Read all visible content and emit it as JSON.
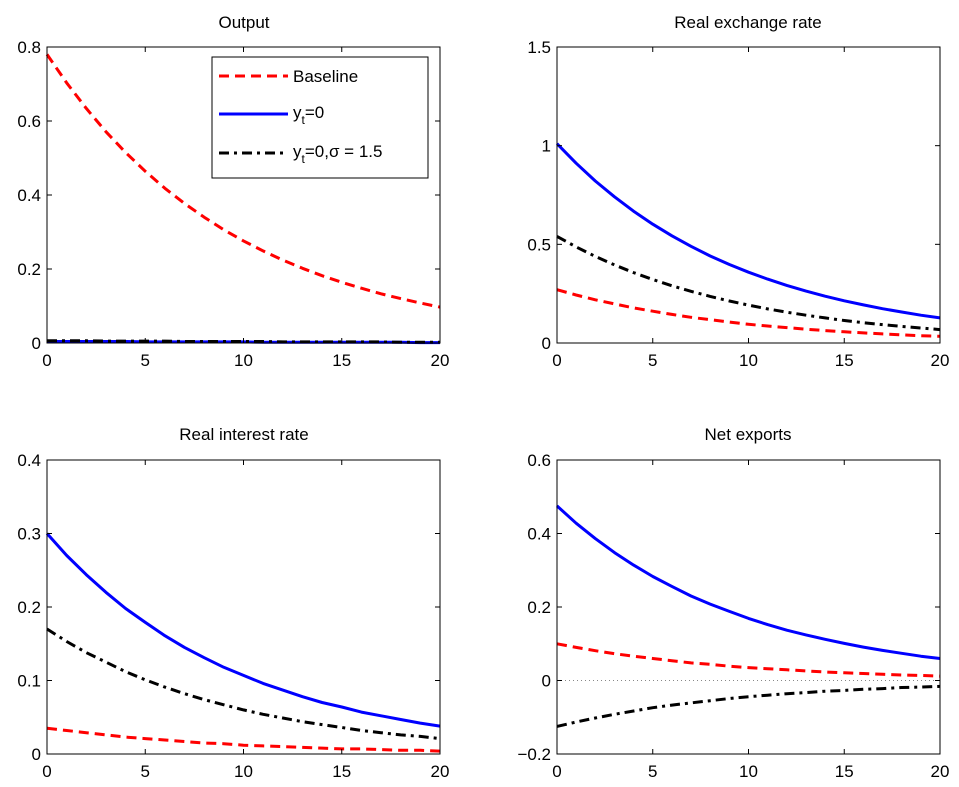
{
  "chart_data": [
    {
      "type": "line",
      "title": "Output",
      "xlabel": "",
      "ylabel": "",
      "xlim": [
        0,
        20
      ],
      "ylim": [
        0,
        0.8
      ],
      "xticks": [
        "0",
        "5",
        "10",
        "15",
        "20"
      ],
      "yticks": [
        "0",
        "0.2",
        "0.4",
        "0.6",
        "0.8"
      ],
      "grid": false,
      "legend": "top-right",
      "x": [
        0,
        1,
        2,
        3,
        4,
        5,
        6,
        7,
        8,
        9,
        10,
        11,
        12,
        13,
        14,
        15,
        16,
        17,
        18,
        19,
        20
      ],
      "series": [
        {
          "name": "Baseline",
          "color": "#ff0000",
          "style": "dashed",
          "values": [
            0.78,
            0.703,
            0.634,
            0.571,
            0.515,
            0.464,
            0.418,
            0.377,
            0.34,
            0.306,
            0.276,
            0.249,
            0.224,
            0.202,
            0.182,
            0.164,
            0.148,
            0.133,
            0.12,
            0.108,
            0.097
          ]
        },
        {
          "name": "y_t=0",
          "color": "#0000ff",
          "style": "solid",
          "values": [
            0.004,
            0.004,
            0.004,
            0.004,
            0.004,
            0.003,
            0.003,
            0.003,
            0.003,
            0.003,
            0.003,
            0.002,
            0.002,
            0.002,
            0.002,
            0.002,
            0.002,
            0.002,
            0.002,
            0.001,
            0.001
          ]
        },
        {
          "name": "y_t=0,σ = 1.5",
          "color": "#000000",
          "style": "dashdot",
          "values": [
            0.006,
            0.006,
            0.006,
            0.005,
            0.005,
            0.005,
            0.005,
            0.004,
            0.004,
            0.004,
            0.004,
            0.004,
            0.003,
            0.003,
            0.003,
            0.003,
            0.003,
            0.003,
            0.002,
            0.002,
            0.002
          ]
        }
      ],
      "legend_entries": {
        "baseline": "Baseline",
        "yt0_base": "y",
        "yt0_sub": "t",
        "yt0_rest": "=0",
        "sigma_base": "y",
        "sigma_sub": "t",
        "sigma_rest": "=0,σ = 1.5"
      }
    },
    {
      "type": "line",
      "title": "Real exchange rate",
      "xlabel": "",
      "ylabel": "",
      "xlim": [
        0,
        20
      ],
      "ylim": [
        0,
        1.5
      ],
      "xticks": [
        "0",
        "5",
        "10",
        "15",
        "20"
      ],
      "yticks": [
        "0",
        "0.5",
        "1",
        "1.5"
      ],
      "grid": false,
      "x": [
        0,
        1,
        2,
        3,
        4,
        5,
        6,
        7,
        8,
        9,
        10,
        11,
        12,
        13,
        14,
        15,
        16,
        17,
        18,
        19,
        20
      ],
      "series": [
        {
          "name": "Baseline",
          "color": "#ff0000",
          "style": "dashed",
          "values": [
            0.27,
            0.243,
            0.219,
            0.198,
            0.178,
            0.161,
            0.145,
            0.13,
            0.118,
            0.106,
            0.095,
            0.086,
            0.078,
            0.07,
            0.063,
            0.057,
            0.051,
            0.046,
            0.041,
            0.037,
            0.034
          ]
        },
        {
          "name": "y_t=0",
          "color": "#0000ff",
          "style": "solid",
          "values": [
            1.01,
            0.911,
            0.821,
            0.741,
            0.668,
            0.602,
            0.543,
            0.49,
            0.441,
            0.398,
            0.359,
            0.324,
            0.292,
            0.263,
            0.237,
            0.214,
            0.193,
            0.174,
            0.157,
            0.141,
            0.127
          ]
        },
        {
          "name": "y_t=0,σ = 1.5",
          "color": "#000000",
          "style": "dashdot",
          "values": [
            0.54,
            0.487,
            0.439,
            0.396,
            0.357,
            0.322,
            0.29,
            0.262,
            0.236,
            0.213,
            0.192,
            0.173,
            0.156,
            0.141,
            0.127,
            0.114,
            0.103,
            0.093,
            0.084,
            0.076,
            0.068
          ]
        }
      ]
    },
    {
      "type": "line",
      "title": "Real interest rate",
      "xlabel": "",
      "ylabel": "",
      "xlim": [
        0,
        20
      ],
      "ylim": [
        0,
        0.4
      ],
      "xticks": [
        "0",
        "5",
        "10",
        "15",
        "20"
      ],
      "yticks": [
        "0",
        "0.1",
        "0.2",
        "0.3",
        "0.4"
      ],
      "grid": false,
      "x": [
        0,
        1,
        2,
        3,
        4,
        5,
        6,
        7,
        8,
        9,
        10,
        11,
        12,
        13,
        14,
        15,
        16,
        17,
        18,
        19,
        20
      ],
      "series": [
        {
          "name": "Baseline",
          "color": "#ff0000",
          "style": "dashed",
          "values": [
            0.035,
            0.032,
            0.029,
            0.026,
            0.023,
            0.021,
            0.019,
            0.017,
            0.015,
            0.014,
            0.012,
            0.011,
            0.01,
            0.009,
            0.008,
            0.007,
            0.007,
            0.006,
            0.005,
            0.005,
            0.004
          ]
        },
        {
          "name": "y_t=0",
          "color": "#0000ff",
          "style": "solid",
          "values": [
            0.3,
            0.27,
            0.244,
            0.22,
            0.198,
            0.179,
            0.161,
            0.145,
            0.131,
            0.118,
            0.107,
            0.096,
            0.087,
            0.078,
            0.07,
            0.064,
            0.057,
            0.052,
            0.047,
            0.042,
            0.038
          ]
        },
        {
          "name": "y_t=0,σ = 1.5",
          "color": "#000000",
          "style": "dashdot",
          "values": [
            0.17,
            0.153,
            0.138,
            0.125,
            0.112,
            0.101,
            0.091,
            0.082,
            0.074,
            0.067,
            0.06,
            0.054,
            0.049,
            0.044,
            0.04,
            0.036,
            0.032,
            0.029,
            0.026,
            0.024,
            0.021
          ]
        }
      ]
    },
    {
      "type": "line",
      "title": "Net exports",
      "xlabel": "",
      "ylabel": "",
      "xlim": [
        0,
        20
      ],
      "ylim": [
        -0.2,
        0.6
      ],
      "xticks": [
        "0",
        "5",
        "10",
        "15",
        "20"
      ],
      "yticks": [
        "−0.2",
        "0",
        "0.2",
        "0.4",
        "0.6"
      ],
      "grid": false,
      "zero_line": true,
      "x": [
        0,
        1,
        2,
        3,
        4,
        5,
        6,
        7,
        8,
        9,
        10,
        11,
        12,
        13,
        14,
        15,
        16,
        17,
        18,
        19,
        20
      ],
      "series": [
        {
          "name": "Baseline",
          "color": "#ff0000",
          "style": "dashed",
          "values": [
            0.1,
            0.09,
            0.081,
            0.073,
            0.066,
            0.06,
            0.054,
            0.048,
            0.044,
            0.039,
            0.035,
            0.032,
            0.029,
            0.026,
            0.023,
            0.021,
            0.019,
            0.017,
            0.015,
            0.014,
            0.012
          ]
        },
        {
          "name": "y_t=0",
          "color": "#0000ff",
          "style": "solid",
          "values": [
            0.475,
            0.428,
            0.386,
            0.348,
            0.314,
            0.283,
            0.256,
            0.23,
            0.208,
            0.188,
            0.169,
            0.152,
            0.137,
            0.124,
            0.112,
            0.101,
            0.091,
            0.082,
            0.074,
            0.066,
            0.06
          ]
        },
        {
          "name": "y_t=0,σ = 1.5",
          "color": "#000000",
          "style": "dashdot",
          "values": [
            -0.125,
            -0.113,
            -0.102,
            -0.092,
            -0.083,
            -0.074,
            -0.067,
            -0.061,
            -0.055,
            -0.049,
            -0.044,
            -0.04,
            -0.036,
            -0.033,
            -0.029,
            -0.027,
            -0.024,
            -0.022,
            -0.019,
            -0.018,
            -0.016
          ]
        }
      ]
    }
  ]
}
